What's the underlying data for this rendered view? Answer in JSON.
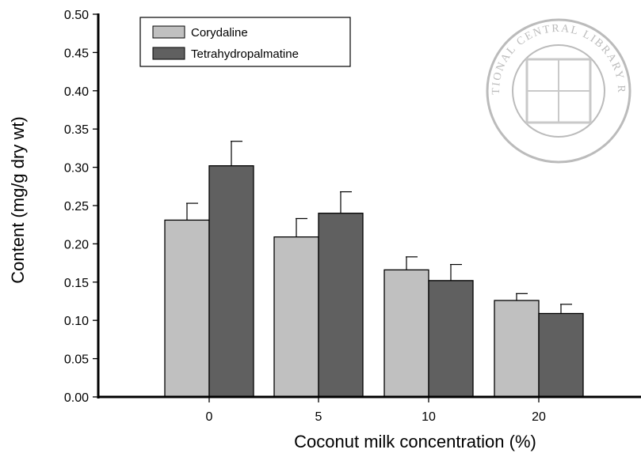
{
  "chart_data": {
    "type": "bar",
    "title": "",
    "xlabel": "Coconut milk concentration (%)",
    "ylabel": "Content (mg/g dry wt)",
    "categories": [
      "0",
      "5",
      "10",
      "20"
    ],
    "ylim": [
      0,
      0.5
    ],
    "yticks": [
      "0.00",
      "0.05",
      "0.10",
      "0.15",
      "0.20",
      "0.25",
      "0.30",
      "0.35",
      "0.40",
      "0.45",
      "0.50"
    ],
    "grid": false,
    "legend_position": "top-left",
    "series": [
      {
        "name": "Corydaline",
        "color": "#c0c0c0",
        "values": [
          0.231,
          0.209,
          0.166,
          0.126
        ],
        "errors": [
          0.022,
          0.024,
          0.017,
          0.009
        ]
      },
      {
        "name": "Tetrahydropalmatine",
        "color": "#606060",
        "values": [
          0.302,
          0.24,
          0.152,
          0.109
        ],
        "errors": [
          0.032,
          0.028,
          0.021,
          0.012
        ]
      }
    ]
  },
  "watermark": {
    "text": "NATIONAL CENTRAL LIBRARY ROC",
    "color": "#b4b4b4"
  }
}
